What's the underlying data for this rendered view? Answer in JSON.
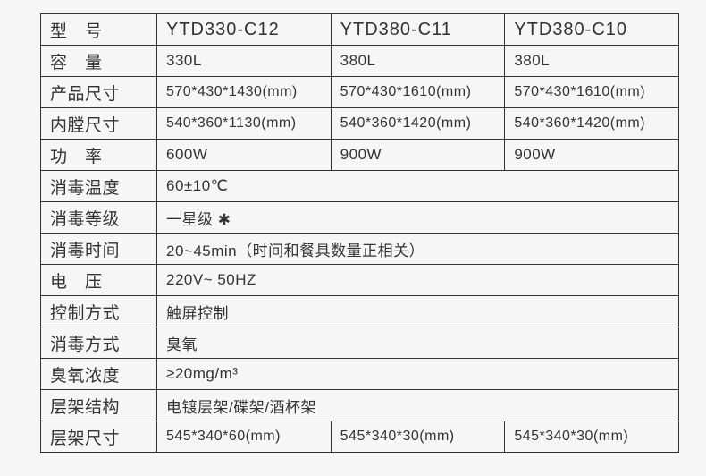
{
  "labels": {
    "model": "型　号",
    "capacity": "容　量",
    "product_size": "产品尺寸",
    "inner_size": "内膛尺寸",
    "power": "功　率",
    "sterilize_temp": "消毒温度",
    "sterilize_level": "消毒等级",
    "sterilize_time": "消毒时间",
    "voltage": "电　压",
    "control": "控制方式",
    "sterilize_method": "消毒方式",
    "ozone": "臭氧浓度",
    "rack_structure": "层架结构",
    "rack_size": "层架尺寸"
  },
  "models": {
    "c12": "YTD330-C12",
    "c11": "YTD380-C11",
    "c10": "YTD380-C10"
  },
  "capacity": {
    "c12": "330L",
    "c11": "380L",
    "c10": "380L"
  },
  "product_size": {
    "c12": "570*430*1430(mm)",
    "c11": "570*430*1610(mm)",
    "c10": "570*430*1610(mm)"
  },
  "inner_size": {
    "c12": "540*360*1130(mm)",
    "c11": "540*360*1420(mm)",
    "c10": "540*360*1420(mm)"
  },
  "power": {
    "c12": "600W",
    "c11": "900W",
    "c10": "900W"
  },
  "sterilize_temp": "60±10℃",
  "sterilize_level": "一星级 ✱",
  "sterilize_time": "20~45min（时间和餐具数量正相关）",
  "voltage": "220V~ 50HZ",
  "control": "触屏控制",
  "sterilize_method": "臭氧",
  "ozone": "≥20mg/m³",
  "rack_structure": "电镀层架/碟架/酒杯架",
  "rack_size": {
    "a": "545*340*60(mm)",
    "b": "545*340*30(mm)",
    "c": "545*340*30(mm)"
  },
  "colors": {
    "border": "#333333",
    "text": "#333333",
    "background": "#f7f6f6"
  }
}
